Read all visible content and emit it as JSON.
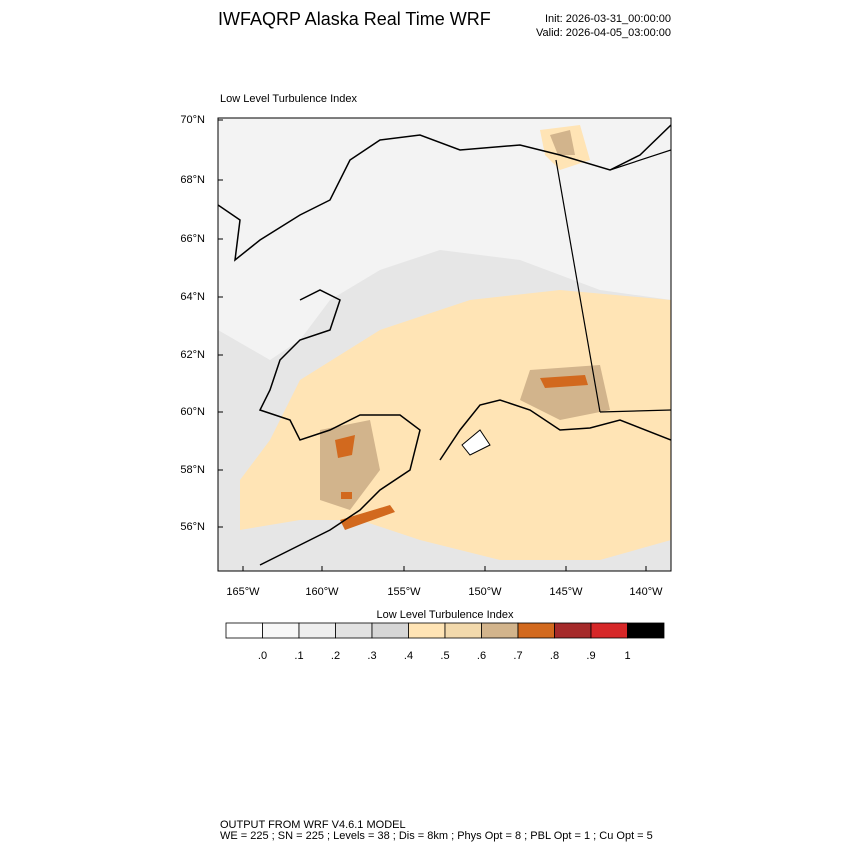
{
  "header": {
    "title": "IWFAQRP Alaska Real Time WRF",
    "init": "Init: 2026-03-31_00:00:00",
    "valid": "Valid: 2026-04-05_03:00:00"
  },
  "map": {
    "title": "Low Level Turbulence Index",
    "lat_labels": [
      "70°N",
      "68°N",
      "66°N",
      "64°N",
      "62°N",
      "60°N",
      "58°N",
      "56°N"
    ],
    "lon_labels": [
      "165°W",
      "160°W",
      "155°W",
      "150°W",
      "145°W",
      "140°W"
    ]
  },
  "colorbar": {
    "title": "Low Level Turbulence Index",
    "labels": [
      ".0",
      ".1",
      ".2",
      ".3",
      ".4",
      ".5",
      ".6",
      ".7",
      ".8",
      ".9",
      "1"
    ],
    "colors": [
      "#ffffff",
      "#f7f7f7",
      "#eeeeee",
      "#e2e2e2",
      "#d6d6d6",
      "#ffe4b5",
      "#f2d9ac",
      "#d2b48c",
      "#d2691e",
      "#a52a2a",
      "#d62728",
      "#000000"
    ]
  },
  "footer": {
    "line1": "OUTPUT FROM WRF V4.6.1 MODEL",
    "line2": "WE = 225 ; SN = 225 ; Levels = 38 ; Dis = 8km ; Phys Opt = 8 ; PBL Opt = 1 ; Cu Opt = 5"
  }
}
